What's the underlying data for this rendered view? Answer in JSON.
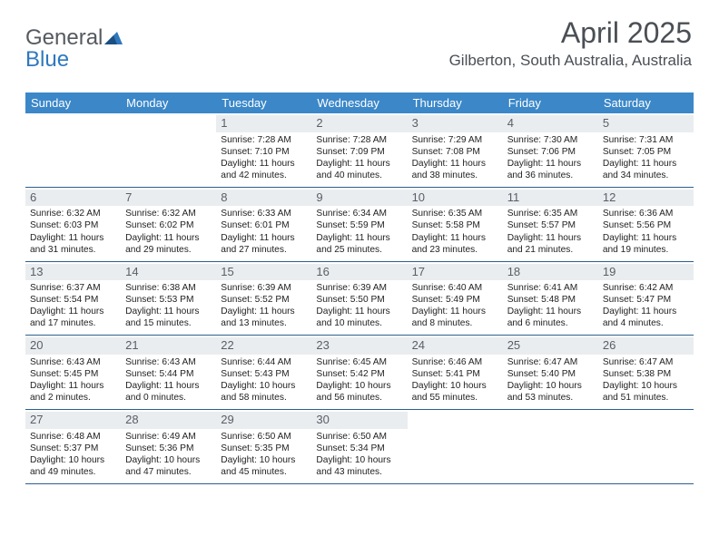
{
  "logo": {
    "text1": "General",
    "text2": "Blue"
  },
  "header": {
    "month_title": "April 2025",
    "location": "Gilberton, South Australia, Australia"
  },
  "colors": {
    "header_bg": "#3b87c8",
    "header_text": "#ffffff",
    "daynum_bg": "#e9edf0",
    "daynum_text": "#5a5f66",
    "week_border": "#2c5f8d",
    "body_text": "#222222",
    "title_text": "#4a4f55",
    "logo_gray": "#555a5f",
    "logo_blue": "#2f78bd"
  },
  "dow": [
    "Sunday",
    "Monday",
    "Tuesday",
    "Wednesday",
    "Thursday",
    "Friday",
    "Saturday"
  ],
  "weeks": [
    [
      {
        "n": "",
        "sr": "",
        "ss": "",
        "dl": ""
      },
      {
        "n": "",
        "sr": "",
        "ss": "",
        "dl": ""
      },
      {
        "n": "1",
        "sr": "Sunrise: 7:28 AM",
        "ss": "Sunset: 7:10 PM",
        "dl": "Daylight: 11 hours and 42 minutes."
      },
      {
        "n": "2",
        "sr": "Sunrise: 7:28 AM",
        "ss": "Sunset: 7:09 PM",
        "dl": "Daylight: 11 hours and 40 minutes."
      },
      {
        "n": "3",
        "sr": "Sunrise: 7:29 AM",
        "ss": "Sunset: 7:08 PM",
        "dl": "Daylight: 11 hours and 38 minutes."
      },
      {
        "n": "4",
        "sr": "Sunrise: 7:30 AM",
        "ss": "Sunset: 7:06 PM",
        "dl": "Daylight: 11 hours and 36 minutes."
      },
      {
        "n": "5",
        "sr": "Sunrise: 7:31 AM",
        "ss": "Sunset: 7:05 PM",
        "dl": "Daylight: 11 hours and 34 minutes."
      }
    ],
    [
      {
        "n": "6",
        "sr": "Sunrise: 6:32 AM",
        "ss": "Sunset: 6:03 PM",
        "dl": "Daylight: 11 hours and 31 minutes."
      },
      {
        "n": "7",
        "sr": "Sunrise: 6:32 AM",
        "ss": "Sunset: 6:02 PM",
        "dl": "Daylight: 11 hours and 29 minutes."
      },
      {
        "n": "8",
        "sr": "Sunrise: 6:33 AM",
        "ss": "Sunset: 6:01 PM",
        "dl": "Daylight: 11 hours and 27 minutes."
      },
      {
        "n": "9",
        "sr": "Sunrise: 6:34 AM",
        "ss": "Sunset: 5:59 PM",
        "dl": "Daylight: 11 hours and 25 minutes."
      },
      {
        "n": "10",
        "sr": "Sunrise: 6:35 AM",
        "ss": "Sunset: 5:58 PM",
        "dl": "Daylight: 11 hours and 23 minutes."
      },
      {
        "n": "11",
        "sr": "Sunrise: 6:35 AM",
        "ss": "Sunset: 5:57 PM",
        "dl": "Daylight: 11 hours and 21 minutes."
      },
      {
        "n": "12",
        "sr": "Sunrise: 6:36 AM",
        "ss": "Sunset: 5:56 PM",
        "dl": "Daylight: 11 hours and 19 minutes."
      }
    ],
    [
      {
        "n": "13",
        "sr": "Sunrise: 6:37 AM",
        "ss": "Sunset: 5:54 PM",
        "dl": "Daylight: 11 hours and 17 minutes."
      },
      {
        "n": "14",
        "sr": "Sunrise: 6:38 AM",
        "ss": "Sunset: 5:53 PM",
        "dl": "Daylight: 11 hours and 15 minutes."
      },
      {
        "n": "15",
        "sr": "Sunrise: 6:39 AM",
        "ss": "Sunset: 5:52 PM",
        "dl": "Daylight: 11 hours and 13 minutes."
      },
      {
        "n": "16",
        "sr": "Sunrise: 6:39 AM",
        "ss": "Sunset: 5:50 PM",
        "dl": "Daylight: 11 hours and 10 minutes."
      },
      {
        "n": "17",
        "sr": "Sunrise: 6:40 AM",
        "ss": "Sunset: 5:49 PM",
        "dl": "Daylight: 11 hours and 8 minutes."
      },
      {
        "n": "18",
        "sr": "Sunrise: 6:41 AM",
        "ss": "Sunset: 5:48 PM",
        "dl": "Daylight: 11 hours and 6 minutes."
      },
      {
        "n": "19",
        "sr": "Sunrise: 6:42 AM",
        "ss": "Sunset: 5:47 PM",
        "dl": "Daylight: 11 hours and 4 minutes."
      }
    ],
    [
      {
        "n": "20",
        "sr": "Sunrise: 6:43 AM",
        "ss": "Sunset: 5:45 PM",
        "dl": "Daylight: 11 hours and 2 minutes."
      },
      {
        "n": "21",
        "sr": "Sunrise: 6:43 AM",
        "ss": "Sunset: 5:44 PM",
        "dl": "Daylight: 11 hours and 0 minutes."
      },
      {
        "n": "22",
        "sr": "Sunrise: 6:44 AM",
        "ss": "Sunset: 5:43 PM",
        "dl": "Daylight: 10 hours and 58 minutes."
      },
      {
        "n": "23",
        "sr": "Sunrise: 6:45 AM",
        "ss": "Sunset: 5:42 PM",
        "dl": "Daylight: 10 hours and 56 minutes."
      },
      {
        "n": "24",
        "sr": "Sunrise: 6:46 AM",
        "ss": "Sunset: 5:41 PM",
        "dl": "Daylight: 10 hours and 55 minutes."
      },
      {
        "n": "25",
        "sr": "Sunrise: 6:47 AM",
        "ss": "Sunset: 5:40 PM",
        "dl": "Daylight: 10 hours and 53 minutes."
      },
      {
        "n": "26",
        "sr": "Sunrise: 6:47 AM",
        "ss": "Sunset: 5:38 PM",
        "dl": "Daylight: 10 hours and 51 minutes."
      }
    ],
    [
      {
        "n": "27",
        "sr": "Sunrise: 6:48 AM",
        "ss": "Sunset: 5:37 PM",
        "dl": "Daylight: 10 hours and 49 minutes."
      },
      {
        "n": "28",
        "sr": "Sunrise: 6:49 AM",
        "ss": "Sunset: 5:36 PM",
        "dl": "Daylight: 10 hours and 47 minutes."
      },
      {
        "n": "29",
        "sr": "Sunrise: 6:50 AM",
        "ss": "Sunset: 5:35 PM",
        "dl": "Daylight: 10 hours and 45 minutes."
      },
      {
        "n": "30",
        "sr": "Sunrise: 6:50 AM",
        "ss": "Sunset: 5:34 PM",
        "dl": "Daylight: 10 hours and 43 minutes."
      },
      {
        "n": "",
        "sr": "",
        "ss": "",
        "dl": ""
      },
      {
        "n": "",
        "sr": "",
        "ss": "",
        "dl": ""
      },
      {
        "n": "",
        "sr": "",
        "ss": "",
        "dl": ""
      }
    ]
  ]
}
